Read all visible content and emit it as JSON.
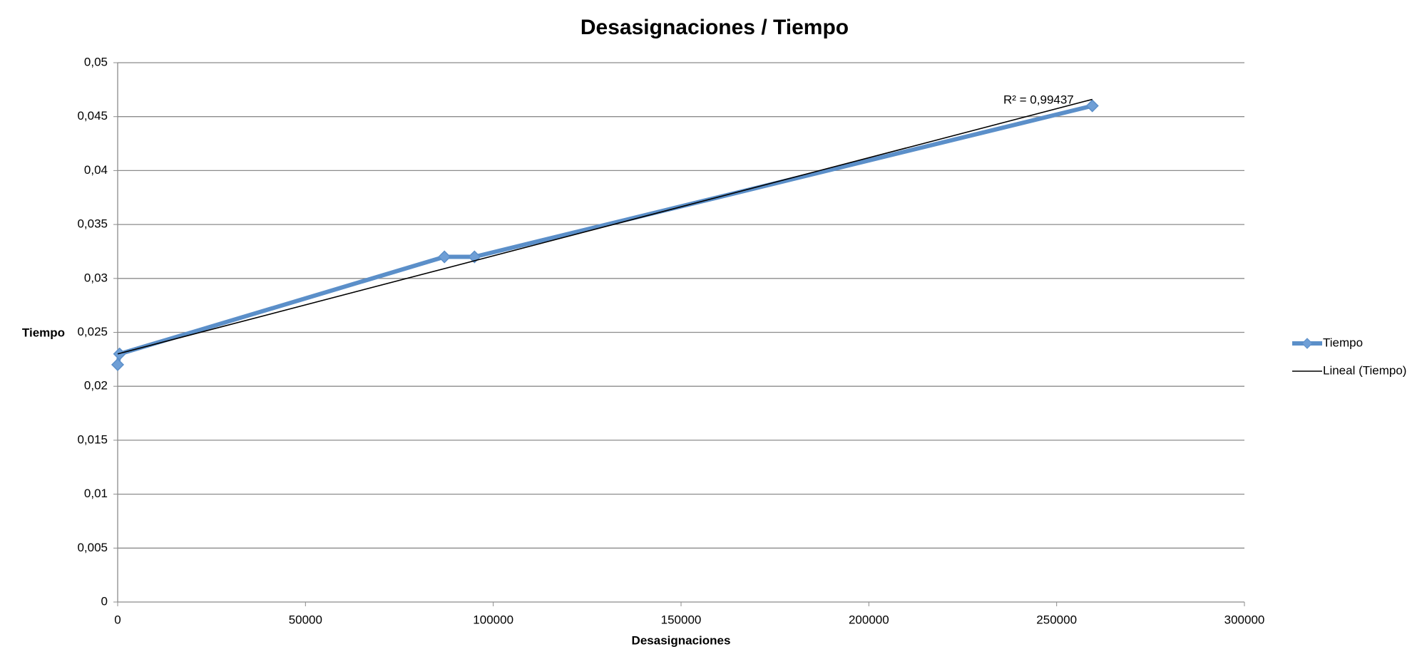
{
  "chart_data": {
    "type": "line",
    "title": "Desasignaciones / Tiempo",
    "x_label": "Desasignaciones",
    "y_label": "Tiempo",
    "annotation": "R² = 0,99437",
    "series": [
      {
        "name": "Tiempo",
        "color": "#5b8fc9",
        "x": [
          0,
          500,
          87000,
          95000,
          259500
        ],
        "values": [
          0.022,
          0.023,
          0.032,
          0.032,
          0.046
        ]
      },
      {
        "name": "Lineal (Tiempo)",
        "color": "#000000",
        "x": [
          0,
          259500
        ],
        "values": [
          0.023,
          0.0466
        ]
      }
    ],
    "xlim": [
      0,
      300000
    ],
    "xticks": [
      0,
      50000,
      100000,
      150000,
      200000,
      250000,
      300000
    ],
    "ylim": [
      0,
      0.05
    ],
    "yticks": [
      0,
      {
        "value": 0.005,
        "label": "0,005"
      },
      {
        "value": 0.01,
        "label": "0,01"
      },
      {
        "value": 0.015,
        "label": "0,015"
      },
      {
        "value": 0.02,
        "label": "0,02"
      },
      {
        "value": 0.025,
        "label": "0,025"
      },
      {
        "value": 0.03,
        "label": "0,03"
      },
      {
        "value": 0.035,
        "label": "0,035"
      },
      {
        "value": 0.04,
        "label": "0,04"
      },
      {
        "value": 0.045,
        "label": "0,045"
      },
      {
        "value": 0.05,
        "label": "0,05"
      }
    ],
    "grid": true,
    "legend": "right"
  }
}
